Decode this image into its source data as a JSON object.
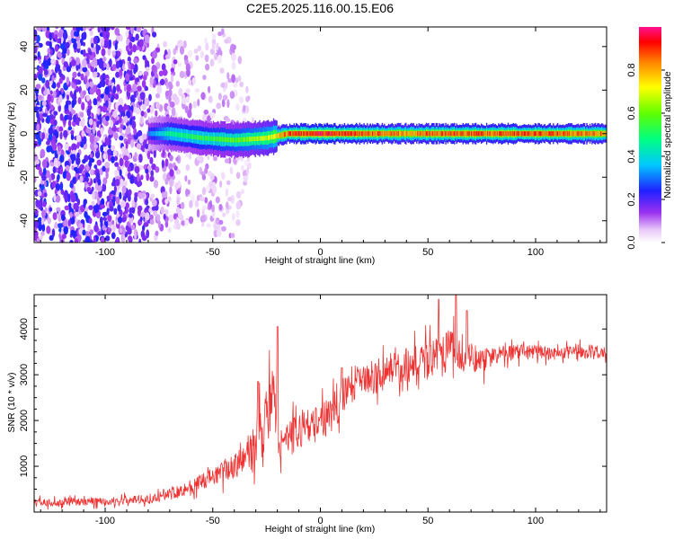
{
  "title": "C2E5.2025.116.00.15.E06",
  "chart_data": [
    {
      "type": "heatmap",
      "xlabel": "Height of straight line (km)",
      "ylabel": "Frequency (Hz)",
      "xlim": [
        -133,
        133
      ],
      "ylim": [
        -50,
        49
      ],
      "xticks": [
        -100,
        -50,
        0,
        50,
        100
      ],
      "yticks": [
        -40,
        -20,
        0,
        20,
        40
      ],
      "colorbar": {
        "label": "Normalized spectral amplitude",
        "ticks": [
          0.0,
          0.2,
          0.4,
          0.6,
          0.8
        ],
        "range": [
          0,
          1
        ],
        "colormap": "rainbow (white-magenta-purple-blue-cyan-green-yellow-orange-red-pink)"
      },
      "description_points": [
        {
          "x": -133,
          "noise_spread_hz": 50,
          "amplitude": 0.25
        },
        {
          "x": -80,
          "noise_spread_hz": 50,
          "amplitude": 0.2
        },
        {
          "x": -60,
          "noise_spread_hz": 40,
          "amplitude": 0.1
        },
        {
          "x": -40,
          "noise_spread_hz": 50,
          "amplitude": 0.1
        },
        {
          "x": -30,
          "noise_spread_hz": 0,
          "amplitude": 0.05
        }
      ],
      "ridge": [
        {
          "x": -80,
          "freq": 0,
          "width_hz": 3,
          "amplitude": 0.3
        },
        {
          "x": -70,
          "freq": 0,
          "width_hz": 3,
          "amplitude": 0.5
        },
        {
          "x": -55,
          "freq": -2,
          "width_hz": 3,
          "amplitude": 0.55
        },
        {
          "x": -40,
          "freq": -3,
          "width_hz": 3,
          "amplitude": 0.6
        },
        {
          "x": -25,
          "freq": -2,
          "width_hz": 3,
          "amplitude": 0.7
        },
        {
          "x": -15,
          "freq": 0,
          "width_hz": 3,
          "amplitude": 0.9
        },
        {
          "x": 0,
          "freq": 0,
          "width_hz": 3,
          "amplitude": 0.95
        },
        {
          "x": 20,
          "freq": 0,
          "width_hz": 3,
          "amplitude": 0.9
        },
        {
          "x": 40,
          "freq": 0,
          "width_hz": 3,
          "amplitude": 0.85
        },
        {
          "x": 60,
          "freq": 0,
          "width_hz": 3,
          "amplitude": 0.9
        },
        {
          "x": 100,
          "freq": 0,
          "width_hz": 3,
          "amplitude": 0.9
        },
        {
          "x": 133,
          "freq": 0,
          "width_hz": 3,
          "amplitude": 0.85
        }
      ]
    },
    {
      "type": "line",
      "xlabel": "Height of straight line (km)",
      "ylabel": "SNR (10 * v/v)",
      "xlim": [
        -133,
        133
      ],
      "ylim": [
        0,
        4750
      ],
      "xticks": [
        -100,
        -50,
        0,
        50,
        100
      ],
      "yticks": [
        1000,
        2000,
        3000,
        4000
      ],
      "series": [
        {
          "color": "#ee3333",
          "x": [
            -133,
            -110,
            -90,
            -80,
            -70,
            -60,
            -50,
            -45,
            -40,
            -35,
            -30,
            -25,
            -22,
            -20,
            -18,
            -15,
            -10,
            -5,
            0,
            5,
            10,
            15,
            20,
            25,
            30,
            40,
            50,
            55,
            60,
            65,
            70,
            75,
            80,
            90,
            100,
            110,
            120,
            133
          ],
          "y": [
            200,
            220,
            250,
            300,
            400,
            550,
            750,
            900,
            1000,
            1200,
            1500,
            2000,
            2600,
            1600,
            1500,
            1600,
            1800,
            1900,
            2000,
            2100,
            2500,
            2800,
            2900,
            3000,
            3100,
            3200,
            3300,
            3400,
            3500,
            3500,
            3400,
            3300,
            3400,
            3500,
            3500,
            3450,
            3500,
            3500
          ],
          "noise": [
            120,
            120,
            130,
            140,
            200,
            250,
            300,
            350,
            400,
            500,
            800,
            1000,
            900,
            700,
            600,
            600,
            600,
            500,
            550,
            600,
            600,
            600,
            500,
            500,
            500,
            550,
            600,
            700,
            700,
            600,
            500,
            400,
            300,
            250,
            200,
            200,
            200,
            200
          ],
          "spikes": [
            {
              "x": -29,
              "y": 2850
            },
            {
              "x": -20,
              "y": 4050
            },
            {
              "x": 10,
              "y": 3150
            },
            {
              "x": 55,
              "y": 4650
            },
            {
              "x": 63,
              "y": 4750
            },
            {
              "x": 68,
              "y": 4400
            }
          ]
        }
      ]
    }
  ]
}
